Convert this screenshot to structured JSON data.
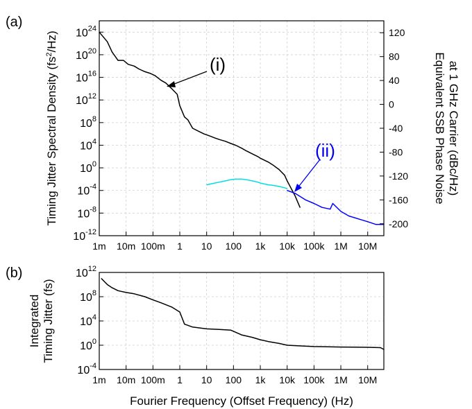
{
  "chart_data": [
    {
      "panel_label": "(a)",
      "type": "line",
      "x_scale": "log",
      "y_scale": "log",
      "xlim": [
        0.001,
        40000000
      ],
      "ylim": [
        1e-12,
        1e+26
      ],
      "x_tick_labels": [
        "1m",
        "10m",
        "100m",
        "1",
        "10",
        "100",
        "1k",
        "10k",
        "100k",
        "1M",
        "10M"
      ],
      "y_tick_labels": [
        {
          "base": "10",
          "exp": "24"
        },
        {
          "base": "10",
          "exp": "20"
        },
        {
          "base": "10",
          "exp": "16"
        },
        {
          "base": "10",
          "exp": "12"
        },
        {
          "base": "10",
          "exp": "8"
        },
        {
          "base": "10",
          "exp": "4"
        },
        {
          "base": "10",
          "exp": "0"
        },
        {
          "base": "10",
          "exp": "-4"
        },
        {
          "base": "10",
          "exp": "-8"
        },
        {
          "base": "10",
          "exp": "-12"
        }
      ],
      "ylabel": "Timing Jitter Spectral Density (fs²/Hz)",
      "ylabel_parts": {
        "pre": "Timing Jitter Spectral Density (fs",
        "sup": "2",
        "post": "/Hz)"
      },
      "right_axis": {
        "label_line1": "Equivalent SSB Phase Noise",
        "label_line2": "at 1 GHz Carrier (dBc/Hz)",
        "ticks": [
          120,
          80,
          40,
          0,
          -40,
          -80,
          -120,
          -160,
          -200
        ],
        "tick_labels": [
          "120",
          "80",
          "40",
          "0",
          "-40",
          "-80",
          "-120",
          "-160",
          "-200"
        ]
      },
      "annotations": [
        {
          "text": "(i)",
          "color": "#000000"
        },
        {
          "text": "(ii)",
          "color": "#0000ee"
        }
      ],
      "series": [
        {
          "color": "#000000",
          "x": [
            0.001,
            0.002,
            0.003,
            0.005,
            0.008,
            0.012,
            0.02,
            0.03,
            0.05,
            0.08,
            0.12,
            0.2,
            0.3,
            0.5,
            0.8,
            1.0,
            1.5,
            2,
            3,
            5,
            8,
            12,
            20,
            30,
            50,
            80,
            120,
            200,
            300,
            500,
            800,
            1000,
            2000,
            3000,
            5000,
            8000,
            10000,
            20000,
            30000
          ],
          "y": [
            1e+24,
            2e+22,
            3e+20,
            1e+19,
            1e+19,
            2e+18,
            1e+18,
            3e+17,
            1e+17,
            5e+16,
            2e+16,
            3000000000000000.0,
            1000000000000000.0,
            100000000000000.0,
            10000000000000.0,
            100000000000.0,
            1000000000.0,
            300000000.0,
            10000000.0,
            3000000.0,
            1000000.0,
            500000.0,
            200000.0,
            100000.0,
            50000.0,
            20000.0,
            10000.0,
            3000.0,
            1000.0,
            300,
            100,
            50,
            10,
            3,
            0.5,
            0.05,
            0.005,
            1e-05,
            1e-07
          ]
        },
        {
          "color": "#00dede",
          "x": [
            10,
            15,
            20,
            30,
            50,
            80,
            120,
            200,
            300,
            500,
            800,
            1000,
            2000,
            3000,
            5000,
            8000,
            10000
          ],
          "y": [
            0.001,
            0.0015,
            0.002,
            0.003,
            0.005,
            0.008,
            0.01,
            0.01,
            0.008,
            0.005,
            0.003,
            0.002,
            0.001,
            0.0008,
            0.0005,
            0.0003,
            0.0002
          ]
        },
        {
          "color": "#0000ff",
          "x": [
            10000,
            20000,
            50000,
            100000,
            200000,
            400000,
            500000,
            1000000,
            2000000,
            5000000,
            10000000,
            20000000,
            40000000
          ],
          "y": [
            0.0001,
            3e-05,
            2e-06,
            5e-07,
            1e-07,
            5e-08,
            5e-07,
            2e-08,
            3e-09,
            8e-10,
            3e-10,
            1e-10,
            1e-10
          ]
        }
      ]
    },
    {
      "panel_label": "(b)",
      "type": "line",
      "x_scale": "log",
      "y_scale": "log",
      "xlim": [
        0.001,
        40000000
      ],
      "ylim": [
        0.0001,
        1000000000000.0
      ],
      "x_tick_labels": [
        "1m",
        "10m",
        "100m",
        "1",
        "10",
        "100",
        "1k",
        "10k",
        "100k",
        "1M",
        "10M"
      ],
      "y_tick_labels": [
        {
          "base": "10",
          "exp": "12"
        },
        {
          "base": "10",
          "exp": "8"
        },
        {
          "base": "10",
          "exp": "4"
        },
        {
          "base": "10",
          "exp": "0"
        },
        {
          "base": "10",
          "exp": "-4"
        }
      ],
      "ylabel_line1": "Integrated",
      "ylabel_line2": "Timing Jitter (fs)",
      "xlabel": "Fourier Frequency (Offset Frequency) (Hz)",
      "series": [
        {
          "color": "#000000",
          "x": [
            0.0012,
            0.002,
            0.003,
            0.005,
            0.01,
            0.02,
            0.05,
            0.1,
            0.2,
            0.5,
            1.0,
            1.5,
            3,
            10,
            30,
            80,
            100,
            200,
            500,
            1000,
            2000,
            5000,
            10000,
            50000,
            100000,
            1000000,
            10000000,
            30000000,
            40000000
          ],
          "y": [
            100000000000.0,
            10000000000.0,
            3000000000.0,
            1000000000.0,
            500000000.0,
            300000000.0,
            100000000.0,
            30000000.0,
            10000000.0,
            2000000.0,
            300000.0,
            3000.0,
            1000.0,
            500.0,
            400.0,
            300.0,
            200.0,
            50,
            20,
            8,
            4,
            2,
            1,
            0.7,
            0.6,
            0.5,
            0.45,
            0.4,
            0.2
          ]
        }
      ]
    }
  ]
}
